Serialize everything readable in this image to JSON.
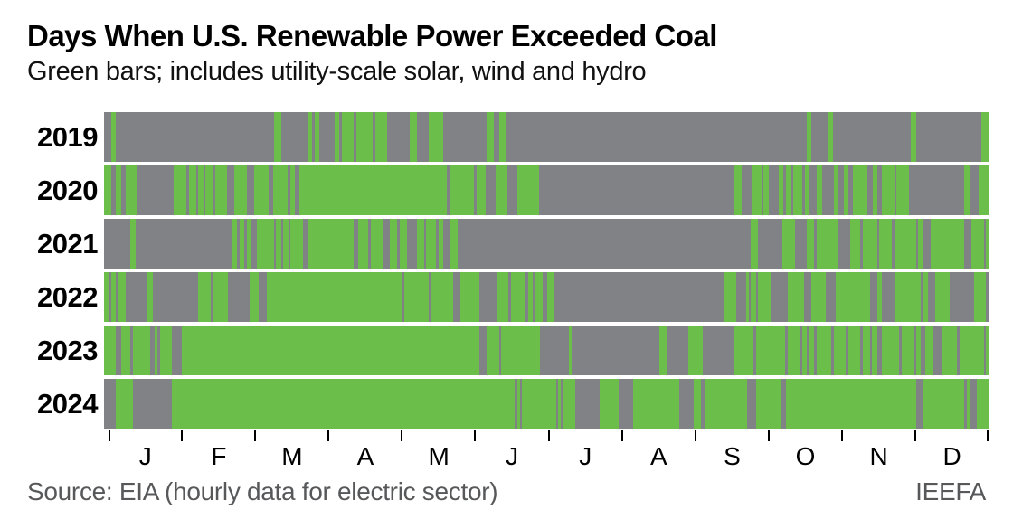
{
  "header": {
    "title": "Days When U.S. Renewable Power Exceeded Coal",
    "subtitle": "Green bars; includes utility-scale solar, wind and hydro"
  },
  "footer": {
    "source": "Source: EIA (hourly data for electric sector)",
    "credit": "IEEFA"
  },
  "chart_data": {
    "type": "heatmap",
    "description": "Daily timeline strips per year; green = day when U.S. renewable power exceeded coal, gray = day it did not",
    "colors": {
      "green": "#6CBE4B",
      "gray": "#808285"
    },
    "x_axis": {
      "unit": "day-of-year",
      "range": [
        1,
        366
      ],
      "tick_count": 13,
      "month_labels": [
        "J",
        "F",
        "M",
        "A",
        "M",
        "J",
        "J",
        "A",
        "S",
        "O",
        "N",
        "D"
      ]
    },
    "legend": "none (explained in subtitle)",
    "grid": false,
    "series": [
      {
        "year": "2019",
        "days": 365,
        "green_segments": [
          [
            4,
            5
          ],
          [
            71,
            73
          ],
          [
            85,
            86
          ],
          [
            88,
            89
          ],
          [
            96,
            97
          ],
          [
            99,
            103
          ],
          [
            105,
            111
          ],
          [
            113,
            117
          ],
          [
            127,
            129
          ],
          [
            135,
            140
          ],
          [
            159,
            161
          ],
          [
            164,
            166
          ],
          [
            291,
            292
          ],
          [
            300,
            301
          ],
          [
            334,
            335
          ],
          [
            363,
            365
          ]
        ]
      },
      {
        "year": "2020",
        "days": 366,
        "green_segments": [
          [
            1,
            3
          ],
          [
            6,
            7
          ],
          [
            10,
            14
          ],
          [
            30,
            34
          ],
          [
            36,
            38
          ],
          [
            40,
            41
          ],
          [
            43,
            45
          ],
          [
            47,
            51
          ],
          [
            55,
            59
          ],
          [
            63,
            68
          ],
          [
            71,
            76
          ],
          [
            78,
            79
          ],
          [
            82,
            142
          ],
          [
            144,
            153
          ],
          [
            155,
            158
          ],
          [
            163,
            167
          ],
          [
            172,
            180
          ],
          [
            262,
            264
          ],
          [
            269,
            272
          ],
          [
            274,
            275
          ],
          [
            280,
            281
          ],
          [
            283,
            284
          ],
          [
            286,
            289
          ],
          [
            291,
            292
          ],
          [
            296,
            297
          ],
          [
            303,
            304
          ],
          [
            307,
            308
          ],
          [
            311,
            316
          ],
          [
            319,
            320
          ],
          [
            323,
            327
          ],
          [
            329,
            333
          ],
          [
            357,
            358
          ],
          [
            363,
            366
          ]
        ]
      },
      {
        "year": "2021",
        "days": 365,
        "green_segments": [
          [
            12,
            13
          ],
          [
            54,
            55
          ],
          [
            57,
            58
          ],
          [
            60,
            61
          ],
          [
            64,
            70
          ],
          [
            72,
            73
          ],
          [
            75,
            76
          ],
          [
            78,
            82
          ],
          [
            85,
            103
          ],
          [
            106,
            109
          ],
          [
            111,
            115
          ],
          [
            119,
            121
          ],
          [
            123,
            125
          ],
          [
            130,
            132
          ],
          [
            134,
            137
          ],
          [
            139,
            140
          ],
          [
            144,
            146
          ],
          [
            268,
            270
          ],
          [
            281,
            285
          ],
          [
            291,
            293
          ],
          [
            295,
            303
          ],
          [
            309,
            312
          ],
          [
            314,
            319
          ],
          [
            321,
            325
          ],
          [
            327,
            329
          ],
          [
            330,
            333
          ],
          [
            334,
            335
          ],
          [
            337,
            338
          ],
          [
            342,
            355
          ],
          [
            359,
            363
          ],
          [
            365,
            365
          ]
        ]
      },
      {
        "year": "2022",
        "days": 365,
        "green_segments": [
          [
            1,
            2
          ],
          [
            4,
            5
          ],
          [
            7,
            9
          ],
          [
            19,
            20
          ],
          [
            40,
            44
          ],
          [
            46,
            48
          ],
          [
            49,
            51
          ],
          [
            61,
            64
          ],
          [
            68,
            123
          ],
          [
            125,
            134
          ],
          [
            136,
            144
          ],
          [
            148,
            155
          ],
          [
            163,
            167
          ],
          [
            169,
            174
          ],
          [
            176,
            177
          ],
          [
            179,
            181
          ],
          [
            184,
            186
          ],
          [
            257,
            261
          ],
          [
            266,
            266
          ],
          [
            268,
            269
          ],
          [
            271,
            275
          ],
          [
            283,
            289
          ],
          [
            293,
            298
          ],
          [
            303,
            314
          ],
          [
            315,
            316
          ],
          [
            320,
            321
          ],
          [
            327,
            337
          ],
          [
            339,
            340
          ],
          [
            344,
            349
          ],
          [
            360,
            362
          ],
          [
            363,
            364
          ]
        ]
      },
      {
        "year": "2023",
        "days": 365,
        "green_segments": [
          [
            1,
            5
          ],
          [
            8,
            11
          ],
          [
            13,
            19
          ],
          [
            22,
            22
          ],
          [
            24,
            28
          ],
          [
            33,
            155
          ],
          [
            159,
            163
          ],
          [
            165,
            180
          ],
          [
            193,
            193
          ],
          [
            230,
            232
          ],
          [
            242,
            247
          ],
          [
            261,
            268
          ],
          [
            270,
            281
          ],
          [
            283,
            287
          ],
          [
            289,
            290
          ],
          [
            292,
            293
          ],
          [
            295,
            300
          ],
          [
            302,
            306
          ],
          [
            308,
            312
          ],
          [
            314,
            316
          ],
          [
            318,
            319
          ],
          [
            322,
            328
          ],
          [
            330,
            334
          ],
          [
            336,
            337
          ],
          [
            340,
            342
          ],
          [
            347,
            352
          ],
          [
            354,
            363
          ],
          [
            365,
            365
          ]
        ]
      },
      {
        "year": "2024",
        "days": 366,
        "green_segments": [
          [
            6,
            12
          ],
          [
            29,
            170
          ],
          [
            172,
            172
          ],
          [
            174,
            187
          ],
          [
            189,
            189
          ],
          [
            191,
            195
          ],
          [
            206,
            213
          ],
          [
            220,
            238
          ],
          [
            245,
            247
          ],
          [
            250,
            266
          ],
          [
            271,
            280
          ],
          [
            283,
            336
          ],
          [
            340,
            356
          ],
          [
            358,
            358
          ],
          [
            362,
            366
          ]
        ]
      }
    ]
  }
}
